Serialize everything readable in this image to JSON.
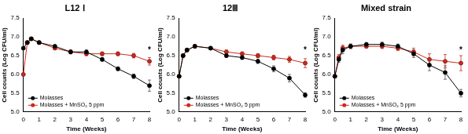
{
  "chart_data": [
    {
      "type": "line",
      "title": "L12 Ⅰ",
      "x_label": "Time (Weeks)",
      "y_label": "Cell counts (Log CFU/ml)",
      "x": [
        0,
        0.25,
        0.5,
        1,
        2,
        3,
        4,
        5,
        6,
        7,
        8
      ],
      "series": [
        {
          "name": "Molasses",
          "color": "#000000",
          "marker": "circle",
          "values": [
            6.7,
            6.85,
            6.95,
            6.85,
            6.75,
            6.6,
            6.6,
            6.4,
            6.15,
            5.95,
            5.7
          ],
          "errors": [
            0.03,
            0.04,
            0.04,
            0.04,
            0.04,
            0.05,
            0.05,
            0.05,
            0.05,
            0.06,
            0.15
          ]
        },
        {
          "name": "Molasses + MnSO₄ 5 ppm",
          "color": "#cc2a1e",
          "marker": "circle",
          "values": [
            6.0,
            6.85,
            6.95,
            6.85,
            6.7,
            6.6,
            6.55,
            6.55,
            6.55,
            6.5,
            6.35
          ],
          "errors": [
            0.03,
            0.04,
            0.04,
            0.04,
            0.04,
            0.05,
            0.05,
            0.05,
            0.05,
            0.06,
            0.1
          ]
        }
      ],
      "xlim": [
        0,
        8
      ],
      "xticks": [
        0,
        1,
        2,
        3,
        4,
        5,
        6,
        7,
        8
      ],
      "ylim": [
        5,
        7.5
      ],
      "yticks": [
        {
          "value": 5,
          "label": "5.0"
        },
        {
          "value": 5.5,
          "label": "5.5"
        },
        {
          "value": 6,
          "label": "6.0"
        },
        {
          "value": 6.5,
          "label": "6.5"
        },
        {
          "value": 7,
          "label": "7.0"
        },
        {
          "value": 7.5,
          "label": "7.5"
        }
      ],
      "grid": false,
      "legend": "lower left",
      "annotations": [
        {
          "text": "*",
          "x": 8,
          "y": 6.5
        }
      ]
    },
    {
      "type": "line",
      "title": "12Ⅲ",
      "x_label": "Time (Weeks)",
      "y_label": "Cell counts (Log CFU/ml)",
      "x": [
        0,
        0.25,
        0.5,
        1,
        2,
        3,
        4,
        5,
        6,
        7,
        8
      ],
      "series": [
        {
          "name": "Molasses",
          "color": "#000000",
          "marker": "circle",
          "values": [
            5.95,
            6.5,
            6.65,
            6.75,
            6.7,
            6.5,
            6.45,
            6.35,
            6.15,
            5.9,
            5.45
          ],
          "errors": [
            0.03,
            0.04,
            0.04,
            0.04,
            0.04,
            0.05,
            0.05,
            0.06,
            0.08,
            0.1,
            0.06
          ]
        },
        {
          "name": "Molasses + MnSO₄ 5 ppm",
          "color": "#cc2a1e",
          "marker": "circle",
          "values": [
            5.95,
            6.5,
            6.65,
            6.75,
            6.7,
            6.6,
            6.55,
            6.5,
            6.45,
            6.4,
            6.3
          ],
          "errors": [
            0.03,
            0.04,
            0.04,
            0.04,
            0.04,
            0.05,
            0.05,
            0.05,
            0.06,
            0.08,
            0.12
          ]
        }
      ],
      "xlim": [
        0,
        8
      ],
      "xticks": [
        0,
        1,
        2,
        3,
        4,
        5,
        6,
        7,
        8
      ],
      "ylim": [
        5,
        7.5
      ],
      "yticks": [
        {
          "value": 5,
          "label": "5.0"
        },
        {
          "value": 5.5,
          "label": "5.5"
        },
        {
          "value": 6,
          "label": "6.0"
        },
        {
          "value": 6.5,
          "label": "6.5"
        },
        {
          "value": 7,
          "label": "7.0"
        },
        {
          "value": 7.5,
          "label": "7.5"
        }
      ],
      "grid": false,
      "legend": "lower left",
      "annotations": [
        {
          "text": "*",
          "x": 8,
          "y": 6.5
        }
      ]
    },
    {
      "type": "line",
      "title": "Mixed strain",
      "x_label": "Time (Weeks)",
      "y_label": "Cell counts (Log CFU/ml)",
      "x": [
        0,
        0.25,
        0.5,
        1,
        2,
        3,
        4,
        5,
        6,
        7,
        8
      ],
      "series": [
        {
          "name": "Molasses",
          "color": "#000000",
          "marker": "circle",
          "values": [
            5.95,
            6.4,
            6.65,
            6.75,
            6.8,
            6.8,
            6.75,
            6.55,
            6.25,
            6.05,
            5.5
          ],
          "errors": [
            0.03,
            0.08,
            0.1,
            0.06,
            0.05,
            0.06,
            0.06,
            0.1,
            0.15,
            0.18,
            0.1
          ]
        },
        {
          "name": "Molasses + MnSO₄ 5 ppm",
          "color": "#cc2a1e",
          "marker": "circle",
          "values": [
            5.95,
            6.45,
            6.7,
            6.75,
            6.75,
            6.75,
            6.7,
            6.6,
            6.4,
            6.35,
            6.3
          ],
          "errors": [
            0.03,
            0.08,
            0.08,
            0.06,
            0.05,
            0.06,
            0.06,
            0.1,
            0.15,
            0.18,
            0.2
          ]
        }
      ],
      "xlim": [
        0,
        8
      ],
      "xticks": [
        0,
        1,
        2,
        3,
        4,
        5,
        6,
        7,
        8
      ],
      "ylim": [
        5,
        7.5
      ],
      "yticks": [
        {
          "value": 5,
          "label": "5.0"
        },
        {
          "value": 5.5,
          "label": "5.5"
        },
        {
          "value": 6,
          "label": "6.0"
        },
        {
          "value": 6.5,
          "label": "6.5"
        },
        {
          "value": 7,
          "label": "7.0"
        },
        {
          "value": 7.5,
          "label": "7.5"
        }
      ],
      "grid": false,
      "legend": "lower left",
      "annotations": [
        {
          "text": "*",
          "x": 8,
          "y": 6.5
        }
      ]
    }
  ]
}
